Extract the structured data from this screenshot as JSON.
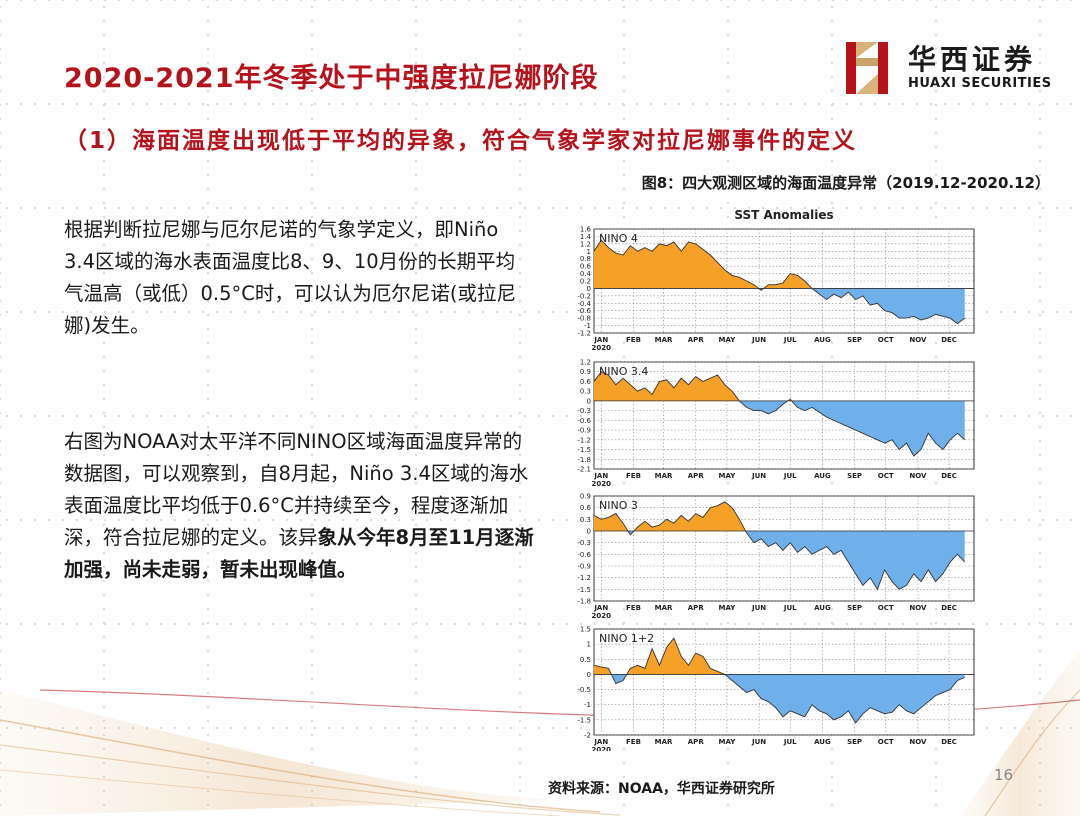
{
  "slide": {
    "title": "2020-2021年冬季处于中强度拉尼娜阶段",
    "subtitle": "（1）海面温度出现低于平均的异象，符合气象学家对拉尼娜事件的定义",
    "figure_caption": "图8：四大观测区域的海面温度异常（2019.12-2020.12）",
    "paragraph1": "根据判断拉尼娜与厄尔尼诺的气象学定义，即Niño 3.4区域的海水表面温度比8、9、10月份的长期平均气温高（或低）0.5°C时，可以认为厄尔尼诺(或拉尼娜)发生。",
    "paragraph2_normal": "右图为NOAA对太平洋不同NINO区域海面温度异常的数据图，可以观察到，自8月起，Niño 3.4区域的海水表面温度比平均低于0.6°C并持续至今，程度逐渐加深，符合拉尼娜的定义。该异",
    "paragraph2_bold": "象从今年8月至11月逐渐加强，尚未走弱，暂未出现峰值。",
    "source": "资料来源：NOAA，华西证券研究所",
    "page_number": "16"
  },
  "logo": {
    "name_cn": "华西证券",
    "name_en": "HUAXI SECURITIES"
  },
  "colors": {
    "title_red": "#b5121b",
    "positive": "#f5a027",
    "negative": "#6fb0ea",
    "grid": "#8a8a8a"
  },
  "chart_data": {
    "type": "area",
    "title": "SST Anomalies",
    "months": [
      "JAN",
      "FEB",
      "MAR",
      "APR",
      "MAY",
      "JUN",
      "JUL",
      "AUG",
      "SEP",
      "OCT",
      "NOV",
      "DEC"
    ],
    "year_label": "2020",
    "x_start": "2019-12-25",
    "x_end": "2020-12-25",
    "panels": [
      {
        "name": "NINO 4",
        "ylim": [
          -1.2,
          1.6
        ],
        "ticks": [
          "1.6",
          "1.4",
          "1.2",
          "1",
          "0.8",
          "0.6",
          "0.4",
          "0.2",
          "0",
          "-0.2",
          "-0.4",
          "-0.6",
          "-0.8",
          "-1",
          "-1.2"
        ],
        "tick_values": [
          1.6,
          1.4,
          1.2,
          1,
          0.8,
          0.6,
          0.4,
          0.2,
          0,
          -0.2,
          -0.4,
          -0.6,
          -0.8,
          -1,
          -1.2
        ],
        "values": [
          1.0,
          1.3,
          1.1,
          0.95,
          0.9,
          1.15,
          1.0,
          1.1,
          1.0,
          1.2,
          1.15,
          1.25,
          1.0,
          1.25,
          1.2,
          1.05,
          0.9,
          0.7,
          0.5,
          0.35,
          0.3,
          0.2,
          0.1,
          -0.05,
          0.1,
          0.1,
          0.15,
          0.4,
          0.35,
          0.2,
          0.0,
          -0.15,
          -0.3,
          -0.15,
          -0.25,
          -0.1,
          -0.3,
          -0.2,
          -0.45,
          -0.4,
          -0.6,
          -0.65,
          -0.8,
          -0.8,
          -0.75,
          -0.85,
          -0.8,
          -0.7,
          -0.75,
          -0.8,
          -0.95,
          -0.8
        ]
      },
      {
        "name": "NINO 3.4",
        "ylim": [
          -2.1,
          1.2
        ],
        "ticks": [
          "1.2",
          "0.9",
          "0.6",
          "0.3",
          "0",
          "-0.3",
          "-0.6",
          "-0.9",
          "-1.2",
          "-1.5",
          "-1.8",
          "-2.1"
        ],
        "tick_values": [
          1.2,
          0.9,
          0.6,
          0.3,
          0,
          -0.3,
          -0.6,
          -0.9,
          -1.2,
          -1.5,
          -1.8,
          -2.1
        ],
        "values": [
          0.6,
          0.9,
          0.8,
          0.5,
          0.7,
          0.5,
          0.3,
          0.4,
          0.2,
          0.6,
          0.65,
          0.4,
          0.7,
          0.5,
          0.75,
          0.6,
          0.7,
          0.8,
          0.5,
          0.3,
          0.0,
          -0.2,
          -0.3,
          -0.3,
          -0.4,
          -0.3,
          -0.1,
          0.05,
          -0.2,
          -0.3,
          -0.2,
          -0.35,
          -0.5,
          -0.6,
          -0.7,
          -0.8,
          -0.9,
          -1.0,
          -1.1,
          -1.2,
          -1.3,
          -1.2,
          -1.5,
          -1.3,
          -1.7,
          -1.5,
          -1.0,
          -1.3,
          -1.5,
          -1.2,
          -1.0,
          -1.2
        ]
      },
      {
        "name": "NINO 3",
        "ylim": [
          -1.8,
          0.9
        ],
        "ticks": [
          "0.9",
          "0.6",
          "0.3",
          "0",
          "-0.3",
          "-0.6",
          "-0.9",
          "-1.2",
          "-1.5",
          "-1.8"
        ],
        "tick_values": [
          0.9,
          0.6,
          0.3,
          0,
          -0.3,
          -0.6,
          -0.9,
          -1.2,
          -1.5,
          -1.8
        ],
        "values": [
          0.4,
          0.3,
          0.35,
          0.45,
          0.2,
          -0.1,
          0.1,
          0.25,
          0.1,
          0.15,
          0.3,
          0.2,
          0.4,
          0.25,
          0.45,
          0.35,
          0.6,
          0.65,
          0.75,
          0.6,
          0.3,
          -0.05,
          -0.3,
          -0.2,
          -0.4,
          -0.3,
          -0.5,
          -0.3,
          -0.55,
          -0.4,
          -0.6,
          -0.5,
          -0.4,
          -0.6,
          -0.5,
          -0.8,
          -1.1,
          -1.4,
          -1.2,
          -1.5,
          -1.0,
          -1.3,
          -1.5,
          -1.4,
          -1.1,
          -1.3,
          -1.0,
          -1.3,
          -1.1,
          -0.8,
          -0.6,
          -0.8
        ]
      },
      {
        "name": "NINO 1+2",
        "ylim": [
          -2,
          1.5
        ],
        "ticks": [
          "1.5",
          "1",
          "0.5",
          "0",
          "-0.5",
          "-1",
          "-1.5",
          "-2"
        ],
        "tick_values": [
          1.5,
          1,
          0.5,
          0,
          -0.5,
          -1,
          -1.5,
          -2
        ],
        "values": [
          0.3,
          0.25,
          0.2,
          -0.3,
          -0.2,
          0.2,
          0.3,
          0.2,
          0.85,
          0.3,
          0.9,
          1.2,
          0.6,
          0.3,
          0.7,
          0.6,
          0.2,
          0.1,
          0.0,
          -0.2,
          -0.4,
          -0.6,
          -0.5,
          -0.8,
          -0.9,
          -1.1,
          -1.4,
          -1.2,
          -1.3,
          -1.4,
          -1.0,
          -1.2,
          -1.3,
          -1.5,
          -1.4,
          -1.2,
          -1.6,
          -1.3,
          -1.1,
          -1.2,
          -1.3,
          -1.25,
          -1.0,
          -1.2,
          -1.3,
          -1.1,
          -0.9,
          -0.7,
          -0.6,
          -0.5,
          -0.2,
          -0.1
        ]
      }
    ]
  }
}
